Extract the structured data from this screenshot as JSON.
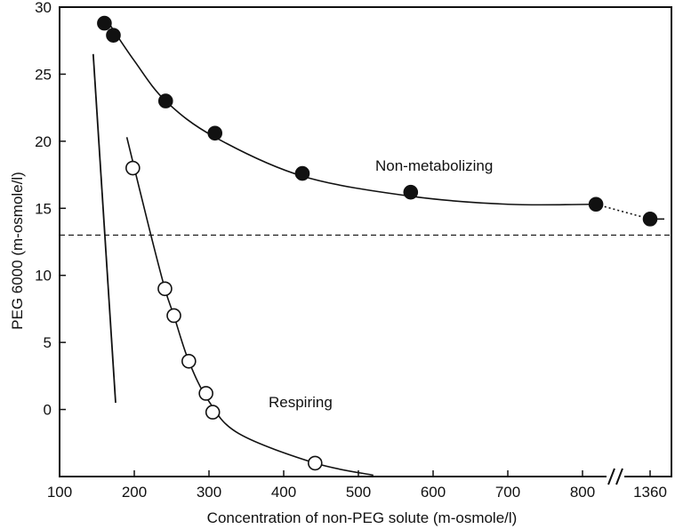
{
  "chart_data": {
    "type": "scatter",
    "title": "",
    "xlabel": "Concentration of non-PEG solute (m-osmole/l)",
    "ylabel": "PEG 6000 (m-osmole/l)",
    "xlim": [
      100,
      850
    ],
    "ylim": [
      -5,
      30
    ],
    "x_ticks": [
      100,
      200,
      300,
      400,
      500,
      600,
      700,
      800
    ],
    "x_break_label": "1360",
    "y_ticks": [
      0,
      5,
      10,
      15,
      20,
      25,
      30
    ],
    "grid": false,
    "annotations": [
      "Non-metabolizing",
      "Respiring"
    ],
    "reference_line": {
      "y": 13,
      "style": "dashed"
    },
    "series": [
      {
        "name": "Non-metabolizing",
        "marker": "filled-circle",
        "points": [
          {
            "x": 160,
            "y": 28.8
          },
          {
            "x": 172,
            "y": 27.9
          },
          {
            "x": 242,
            "y": 23.0
          },
          {
            "x": 308,
            "y": 20.6
          },
          {
            "x": 425,
            "y": 17.6
          },
          {
            "x": 570,
            "y": 16.2
          },
          {
            "x": 818,
            "y": 15.3
          },
          {
            "x": "1360",
            "y": 14.2
          }
        ]
      },
      {
        "name": "Respiring",
        "marker": "open-circle",
        "points": [
          {
            "x": 198,
            "y": 18.0
          },
          {
            "x": 241,
            "y": 9.0
          },
          {
            "x": 253,
            "y": 7.0
          },
          {
            "x": 273,
            "y": 3.6
          },
          {
            "x": 296,
            "y": 1.2
          },
          {
            "x": 305,
            "y": -0.2
          },
          {
            "x": 442,
            "y": -4.0
          }
        ]
      }
    ]
  }
}
